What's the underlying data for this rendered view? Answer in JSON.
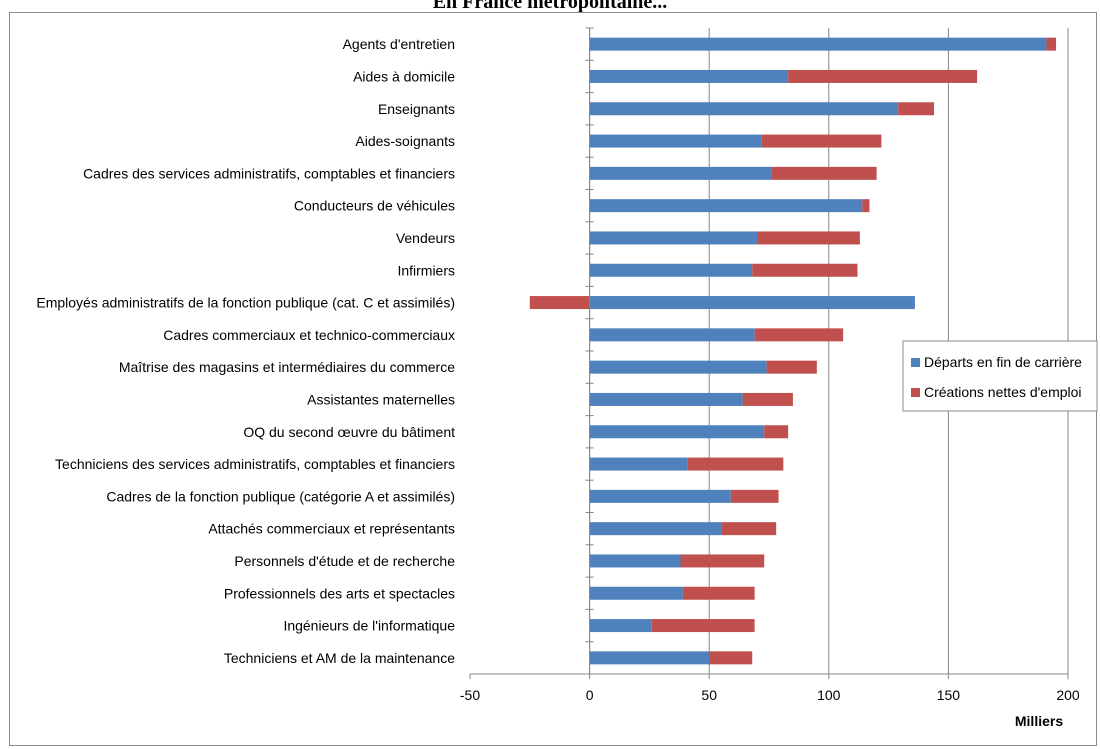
{
  "title_fragment": "En France métropolitaine...",
  "chart_data": {
    "type": "bar",
    "orientation": "horizontal",
    "stacked": true,
    "categories": [
      "Agents d'entretien",
      "Aides à domicile",
      "Enseignants",
      "Aides-soignants",
      "Cadres des services administratifs, comptables et financiers",
      "Conducteurs de véhicules",
      "Vendeurs",
      "Infirmiers",
      "Employés administratifs de la fonction publique (cat. C et assimilés)",
      "Cadres commerciaux et technico-commerciaux",
      "Maîtrise des magasins et intermédiaires du commerce",
      "Assistantes maternelles",
      "OQ du second œuvre du bâtiment",
      "Techniciens des services administratifs, comptables et financiers",
      "Cadres de la fonction publique (catégorie A et assimilés)",
      "Attachés commerciaux et représentants",
      "Personnels d'étude et de recherche",
      "Professionnels des arts et spectacles",
      "Ingénieurs de l'informatique",
      "Techniciens et AM de la maintenance"
    ],
    "series": [
      {
        "name": "Départs en fin de carrière",
        "color": "#4f81bd",
        "values": [
          191,
          83,
          129,
          72,
          76,
          114,
          70,
          68,
          136,
          69,
          74,
          64,
          73,
          41,
          59,
          55,
          38,
          39,
          26,
          50
        ]
      },
      {
        "name": "Créations nettes d'emploi",
        "color": "#c0504d",
        "values": [
          4,
          79,
          15,
          50,
          44,
          3,
          43,
          44,
          -25,
          37,
          21,
          21,
          10,
          40,
          20,
          23,
          35,
          30,
          43,
          18
        ]
      }
    ],
    "xlim": [
      -50,
      200
    ],
    "xticks": [
      -50,
      0,
      50,
      100,
      150,
      200
    ],
    "xtick_labels": [
      "-50",
      "0",
      "50",
      "100",
      "150",
      "200"
    ],
    "xlabel": "Milliers",
    "ylabel": "",
    "grid": "vertical",
    "legend": "right"
  }
}
